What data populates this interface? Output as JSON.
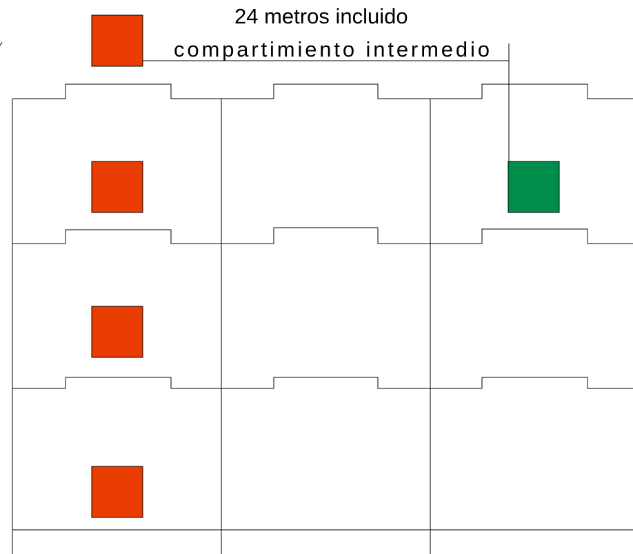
{
  "caption": {
    "line1": "24 metros incluido",
    "line2": "compartimiento intermedio"
  },
  "colors": {
    "marker_red": "#e83c00",
    "marker_green": "#008c4a",
    "line": "#000000",
    "background": "#ffffff"
  },
  "grid": {
    "columns": 3,
    "rows": 3
  },
  "markers": [
    {
      "id": "legend",
      "color_key": "marker_red"
    },
    {
      "id": "row-1-col-1",
      "color_key": "marker_red"
    },
    {
      "id": "row-1-col-3",
      "color_key": "marker_green"
    },
    {
      "id": "row-2-col-1",
      "color_key": "marker_red"
    },
    {
      "id": "row-3-col-1",
      "color_key": "marker_red"
    }
  ]
}
